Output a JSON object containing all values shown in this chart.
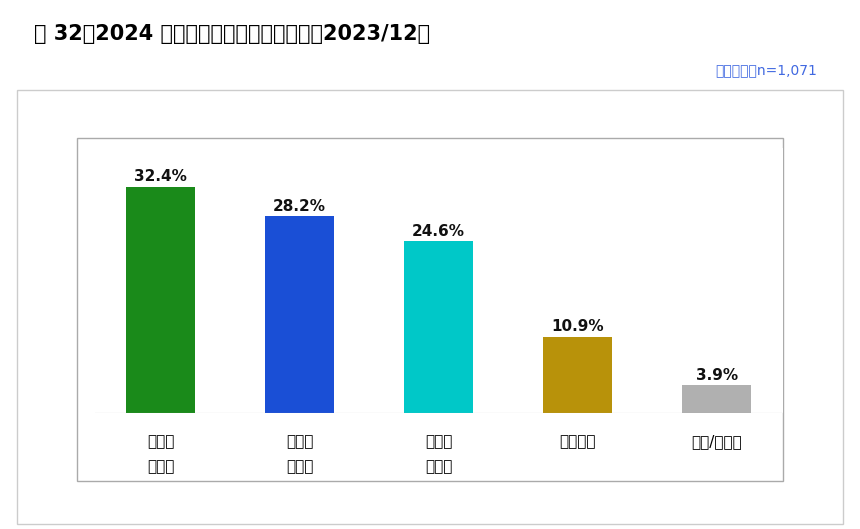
{
  "title": "圖 32：2024 台灣總統選民的投票抉擇　（2023/12）",
  "sample_note": "樣本總數：n=1,071",
  "categories": [
    "賴清德\n蕭美琴",
    "侯友宜\n趙少康",
    "柯文哲\n吳欣盈",
    "尚未決定",
    "其他/不知道"
  ],
  "values": [
    32.4,
    28.2,
    24.6,
    10.9,
    3.9
  ],
  "labels": [
    "32.4%",
    "28.2%",
    "24.6%",
    "10.9%",
    "3.9%"
  ],
  "bar_colors": [
    "#1a8a1a",
    "#1a4fd6",
    "#00c8c8",
    "#b8920a",
    "#b0b0b0"
  ],
  "bg_color": "#ffffff",
  "title_color": "#000000",
  "sample_color": "#4169e1",
  "ylim": [
    0,
    38
  ],
  "bar_width": 0.5
}
